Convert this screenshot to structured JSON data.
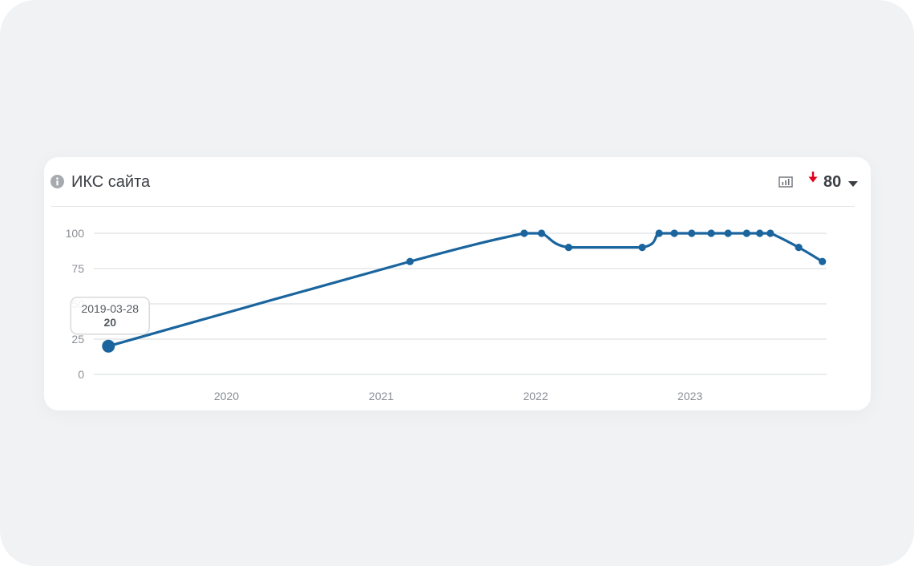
{
  "card": {
    "title": "ИКС сайта",
    "current_value": "80",
    "trend": "down",
    "icons": {
      "info": "info-icon",
      "chart": "bar-chart-icon",
      "trend": "arrow-down-icon",
      "dropdown": "caret-down-icon"
    }
  },
  "colors": {
    "line": "#1a659e",
    "grid": "#e4e6e9",
    "trend_down": "#e2001a",
    "text": "#3b3f44",
    "muted": "#8a8e94"
  },
  "chart_data": {
    "type": "line",
    "x_type": "date",
    "xlim": [
      "2019-03-01",
      "2023-11-20"
    ],
    "ylim": [
      0,
      100
    ],
    "yticks": [
      "0",
      "25",
      "50",
      "75",
      "100"
    ],
    "xticks": [
      "2020",
      "2021",
      "2022",
      "2023"
    ],
    "grid": true,
    "series": [
      {
        "x": [
          "2019-03-28",
          "2021-03-10",
          "2021-12-05",
          "2022-01-15",
          "2022-03-20",
          "2022-09-10",
          "2022-10-20",
          "2022-11-25",
          "2023-01-05",
          "2023-02-20",
          "2023-04-01",
          "2023-05-15",
          "2023-06-15",
          "2023-07-10",
          "2023-09-15",
          "2023-11-10"
        ],
        "y": [
          20,
          80,
          100,
          100,
          90,
          90,
          100,
          100,
          100,
          100,
          100,
          100,
          100,
          100,
          90,
          80
        ]
      }
    ],
    "tooltip": {
      "date": "2019-03-28",
      "value": "20"
    }
  }
}
